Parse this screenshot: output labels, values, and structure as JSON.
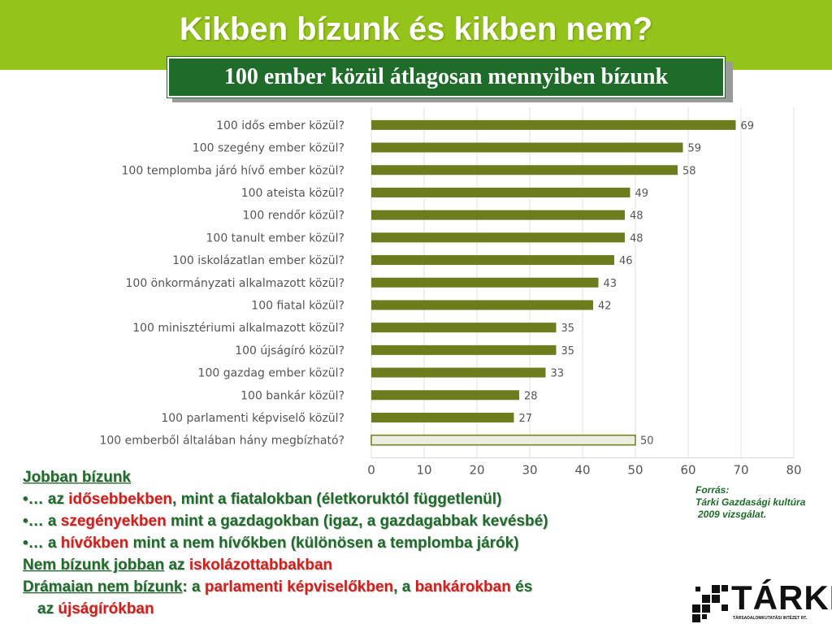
{
  "header": {
    "title": "Kikben bízunk és kikben nem?"
  },
  "subtitle": "100 ember közül átlagosan mennyiben bízunk",
  "chart_data": {
    "type": "bar",
    "orientation": "horizontal",
    "categories": [
      "100 idős ember közül?",
      "100 szegény ember közül?",
      "100 templomba járó hívő ember közül?",
      "100 ateista közül?",
      "100 rendőr közül?",
      "100 tanult ember közül?",
      "100 iskolázatlan ember közül?",
      "100 önkormányzati alkalmazott közül?",
      "100 fiatal közül?",
      "100 minisztériumi alkalmazott közül?",
      "100 újságíró közül?",
      "100 gazdag ember közül?",
      "100 bankár közül?",
      "100 parlamenti képviselő közül?",
      "100 emberből általában hány megbízható?"
    ],
    "values": [
      69,
      59,
      58,
      49,
      48,
      48,
      46,
      43,
      42,
      35,
      35,
      33,
      28,
      27,
      50
    ],
    "xlim": [
      0,
      80
    ],
    "xticks": [
      "0",
      "10",
      "20",
      "30",
      "40",
      "50",
      "60",
      "70",
      "80"
    ],
    "colors": {
      "bar": "#6d7d1d",
      "highlight_bar": "#ededdf",
      "highlight_edge": "#6d7d1d"
    }
  },
  "notes": {
    "line1": "Jobban bízunk",
    "line2": {
      "a": "•… az ",
      "b": "idősebbekben",
      "c": ", mint a fiatalokban (életkoruktól függetlenül)"
    },
    "line3": {
      "a": "•… a ",
      "b": "szegényekben",
      "c": " mint a gazdagokban (igaz, a gazdagabbak kevésbé)"
    },
    "line4": {
      "a": "•… a ",
      "b": "hívőkben",
      "c": " mint a nem hívőkben (különösen a templomba járók)"
    },
    "line5": {
      "a": "Nem bízunk jobban",
      "b": " az ",
      "c": "iskolázottabbakban"
    },
    "line6": {
      "a": "Drámaian nem bízunk",
      "b": ": a ",
      "c": "parlamenti képviselőkben",
      "d": ", a ",
      "e": "bankárokban",
      "f": " és"
    },
    "line7": {
      "a": "az ",
      "b": "újságírókban"
    }
  },
  "source": {
    "line1": "Forrás:",
    "line2": "Tárki Gazdasági kultúra",
    "line3": "2009 vizsgálat."
  },
  "logo": {
    "text": "TÁRKI",
    "sub": "TÁRSADALOMKUTATÁSI INTÉZET RT.",
    "icon": "stairs-logo-icon"
  }
}
